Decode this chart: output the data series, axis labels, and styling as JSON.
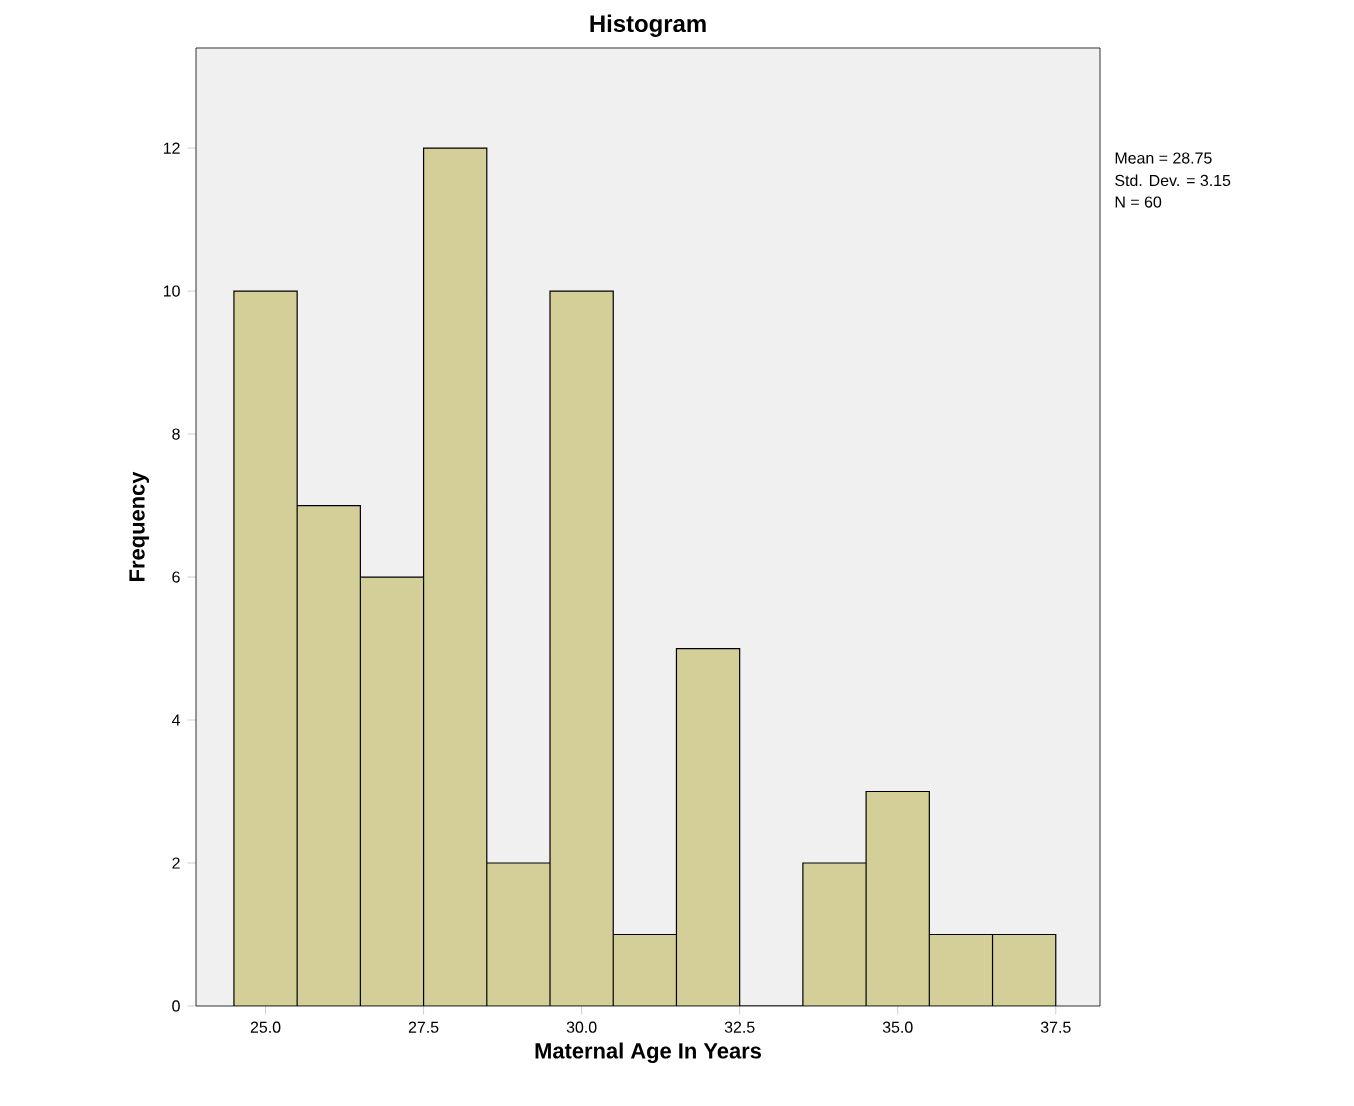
{
  "chart_data": {
    "type": "histogram",
    "title": "Histogram",
    "xlabel": "Maternal Age In Years",
    "ylabel": "Frequency",
    "bins": [
      24.5,
      25.5,
      26.5,
      27.5,
      28.5,
      29.5,
      30.5,
      31.5,
      32.5,
      33.5,
      34.5,
      35.5,
      36.5,
      37.5
    ],
    "values": [
      10,
      7,
      6,
      12,
      2,
      10,
      1,
      5,
      0,
      2,
      3,
      1,
      1
    ],
    "color": "#d4cf99",
    "xlim": [
      23.9,
      38.2
    ],
    "ylim": [
      0,
      13.4
    ],
    "xticks": [
      {
        "value": 25,
        "label": "25.0"
      },
      {
        "value": 27.5,
        "label": "27.5"
      },
      {
        "value": 30,
        "label": "30.0"
      },
      {
        "value": 32.5,
        "label": "32.5"
      },
      {
        "value": 35,
        "label": "35.0"
      },
      {
        "value": 37.5,
        "label": "37.5"
      }
    ],
    "yticks": [
      0,
      2,
      4,
      6,
      8,
      10,
      12
    ],
    "grid": false,
    "annotations": [
      "Mean = 28.75",
      "Std. Dev. = 3.15",
      "N = 60"
    ]
  }
}
